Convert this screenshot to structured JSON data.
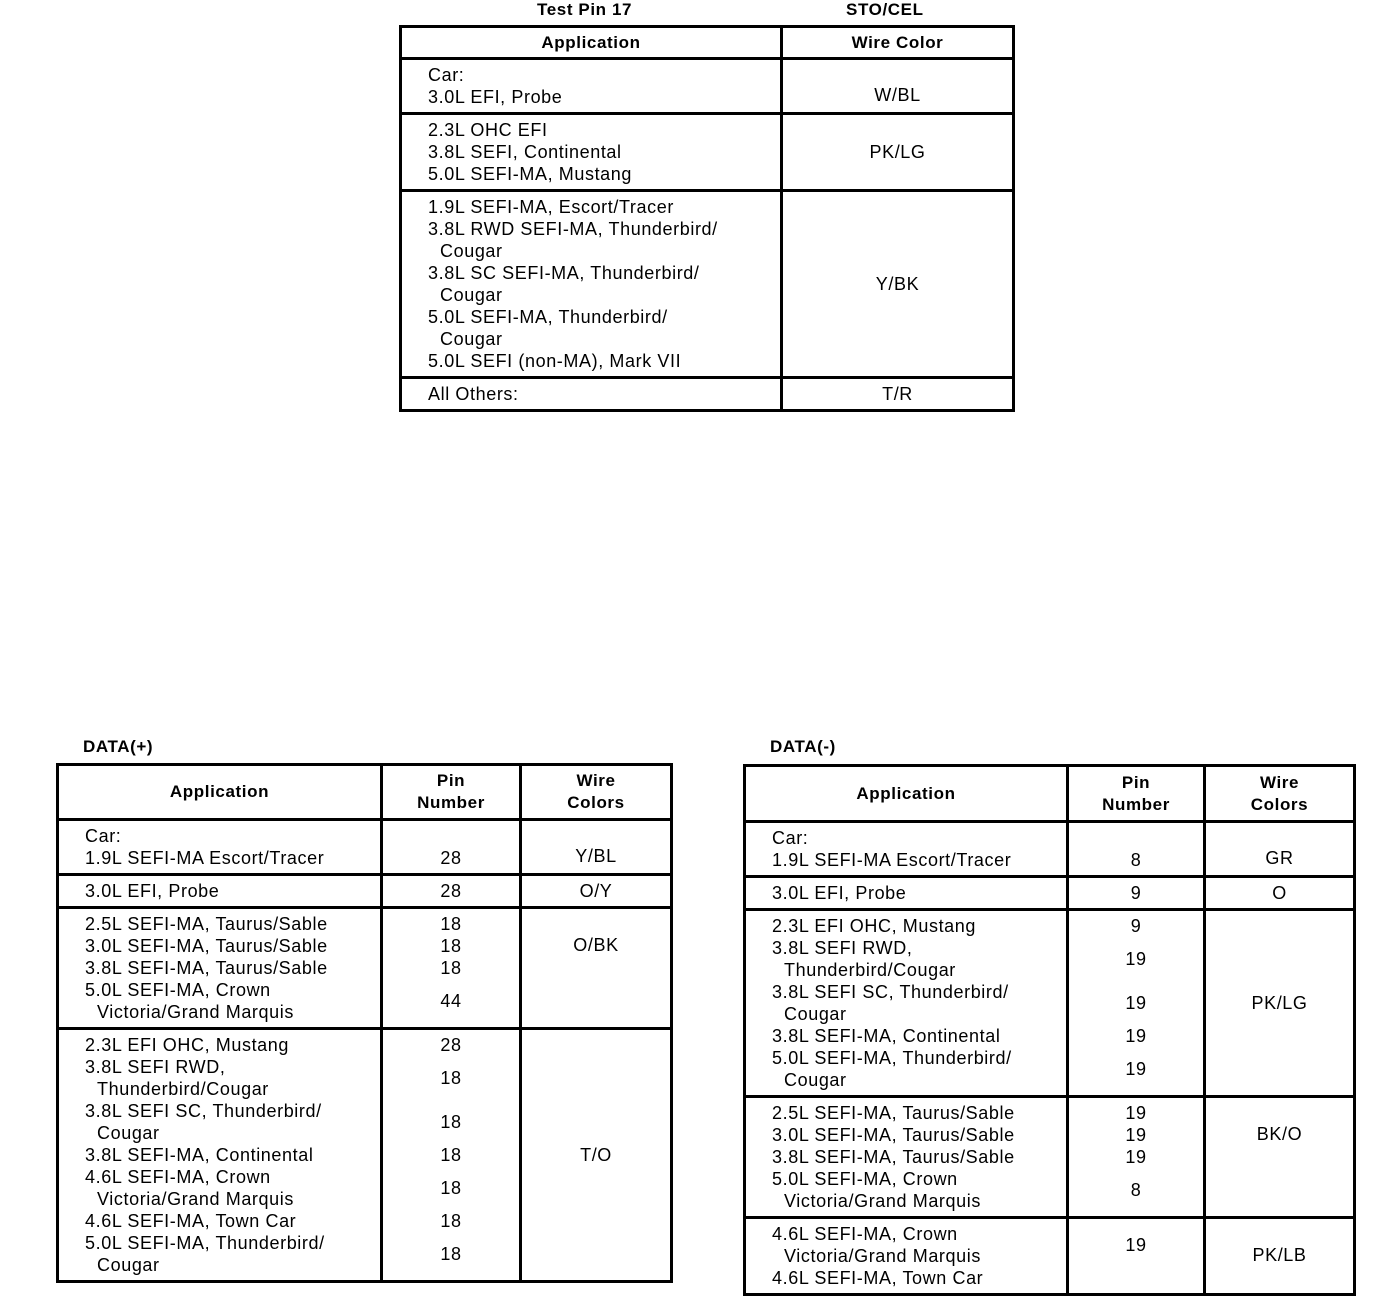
{
  "test_pin": {
    "title_left": "Test Pin 17",
    "title_right": "STO/CEL",
    "headers": [
      "Application",
      "Wire Color"
    ],
    "rows": [
      {
        "items": [
          [
            "Car:"
          ],
          [
            "3.0L EFI, Probe"
          ]
        ],
        "wire": "W/BL",
        "wire_bottom": true
      },
      {
        "items": [
          [
            "2.3L OHC EFI"
          ],
          [
            "3.8L SEFI, Continental"
          ],
          [
            "5.0L SEFI-MA, Mustang"
          ]
        ],
        "wire": "PK/LG"
      },
      {
        "items": [
          [
            "1.9L SEFI-MA, Escort/Tracer"
          ],
          [
            "3.8L RWD SEFI-MA, Thunderbird/",
            "Cougar"
          ],
          [
            "3.8L SC SEFI-MA, Thunderbird/",
            "Cougar"
          ],
          [
            "5.0L SEFI-MA, Thunderbird/",
            "Cougar"
          ],
          [
            "5.0L SEFI (non-MA), Mark VII"
          ]
        ],
        "wire": "Y/BK"
      },
      {
        "items": [
          [
            "All Others:"
          ]
        ],
        "wire": "T/R"
      }
    ]
  },
  "data_plus": {
    "title": "DATA(+)",
    "headers": [
      "Application",
      "Pin Number",
      "Wire Colors"
    ],
    "rows": [
      {
        "items": [
          {
            "app": [
              "Car:"
            ],
            "pin": ""
          },
          {
            "app": [
              "1.9L SEFI-MA Escort/Tracer"
            ],
            "pin": "28"
          }
        ],
        "wire": "Y/BL",
        "wire_bottom": true
      },
      {
        "items": [
          {
            "app": [
              "3.0L EFI, Probe"
            ],
            "pin": "28"
          }
        ],
        "wire": "O/Y"
      },
      {
        "items": [
          {
            "app": [
              "2.5L SEFI-MA, Taurus/Sable"
            ],
            "pin": "18"
          },
          {
            "app": [
              "3.0L SEFI-MA, Taurus/Sable"
            ],
            "pin": "18"
          },
          {
            "app": [
              "3.8L SEFI-MA, Taurus/Sable"
            ],
            "pin": "18"
          },
          {
            "app": [
              "5.0L SEFI-MA, Crown",
              "Victoria/Grand Marquis"
            ],
            "pin": "44"
          }
        ],
        "wire": "O/BK",
        "wire_top": true
      },
      {
        "items": [
          {
            "app": [
              "2.3L EFI OHC, Mustang"
            ],
            "pin": "28"
          },
          {
            "app": [
              "3.8L SEFI RWD,",
              "Thunderbird/Cougar"
            ],
            "pin": "18"
          },
          {
            "app": [
              "3.8L SEFI SC, Thunderbird/",
              "Cougar"
            ],
            "pin": "18"
          },
          {
            "app": [
              "3.8L SEFI-MA, Continental"
            ],
            "pin": "18"
          },
          {
            "app": [
              "4.6L SEFI-MA, Crown",
              "Victoria/Grand Marquis"
            ],
            "pin": "18"
          },
          {
            "app": [
              "4.6L SEFI-MA, Town Car"
            ],
            "pin": "18"
          },
          {
            "app": [
              "5.0L SEFI-MA, Thunderbird/",
              "Cougar"
            ],
            "pin": "18"
          }
        ],
        "wire": "T/O"
      }
    ]
  },
  "data_minus": {
    "title": "DATA(-)",
    "headers": [
      "Application",
      "Pin Number",
      "Wire Colors"
    ],
    "rows": [
      {
        "items": [
          {
            "app": [
              "Car:"
            ],
            "pin": ""
          },
          {
            "app": [
              "1.9L SEFI-MA Escort/Tracer"
            ],
            "pin": "8"
          }
        ],
        "wire": "GR",
        "wire_bottom": true
      },
      {
        "items": [
          {
            "app": [
              "3.0L EFI, Probe"
            ],
            "pin": "9"
          }
        ],
        "wire": "O"
      },
      {
        "items": [
          {
            "app": [
              "2.3L EFI OHC, Mustang"
            ],
            "pin": "9"
          },
          {
            "app": [
              "3.8L SEFI RWD,",
              "Thunderbird/Cougar"
            ],
            "pin": "19"
          },
          {
            "app": [
              "3.8L SEFI SC, Thunderbird/",
              "Cougar"
            ],
            "pin": "19"
          },
          {
            "app": [
              "3.8L SEFI-MA, Continental"
            ],
            "pin": "19"
          },
          {
            "app": [
              "5.0L SEFI-MA, Thunderbird/",
              "Cougar"
            ],
            "pin": "19"
          }
        ],
        "wire": "PK/LG"
      },
      {
        "items": [
          {
            "app": [
              "2.5L SEFI-MA, Taurus/Sable"
            ],
            "pin": "19"
          },
          {
            "app": [
              "3.0L SEFI-MA, Taurus/Sable"
            ],
            "pin": "19"
          },
          {
            "app": [
              "3.8L SEFI-MA, Taurus/Sable"
            ],
            "pin": "19"
          },
          {
            "app": [
              "5.0L SEFI-MA, Crown",
              "Victoria/Grand Marquis"
            ],
            "pin": "8"
          }
        ],
        "wire": "BK/O",
        "wire_top": true
      },
      {
        "items": [
          {
            "app": [
              "4.6L SEFI-MA, Crown",
              "Victoria/Grand Marquis"
            ],
            "pin": "19"
          },
          {
            "app": [
              "4.6L SEFI-MA, Town Car"
            ],
            "pin": ""
          }
        ],
        "wire": "PK/LB",
        "wire_top": true
      }
    ]
  }
}
